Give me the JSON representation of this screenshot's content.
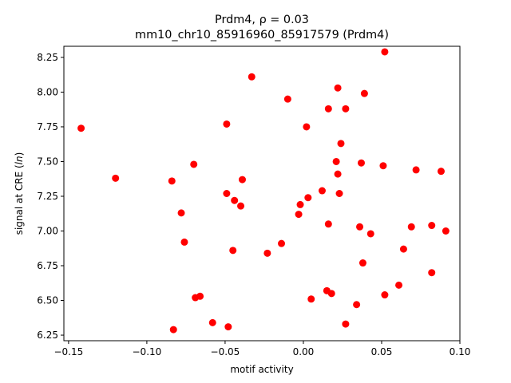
{
  "chart_data": {
    "type": "scatter",
    "title": "Prdm4, ρ = 0.03",
    "subtitle": "mm10_chr10_85916960_85917579 (Prdm4)",
    "xlabel": "motif activity",
    "ylabel": "signal at CRE (ln)",
    "ylabel_prefix": "signal at CRE (",
    "ylabel_italic": "ln",
    "ylabel_suffix": ")",
    "xlim": [
      -0.153,
      0.1
    ],
    "ylim": [
      6.21,
      8.33
    ],
    "xticks": [
      {
        "value": -0.15,
        "label": "−0.15"
      },
      {
        "value": -0.1,
        "label": "−0.10"
      },
      {
        "value": -0.05,
        "label": "−0.05"
      },
      {
        "value": 0.0,
        "label": "0.00"
      },
      {
        "value": 0.05,
        "label": "0.05"
      },
      {
        "value": 0.1,
        "label": "0.10"
      }
    ],
    "yticks": [
      {
        "value": 6.25,
        "label": "6.25"
      },
      {
        "value": 6.5,
        "label": "6.50"
      },
      {
        "value": 6.75,
        "label": "6.75"
      },
      {
        "value": 7.0,
        "label": "7.00"
      },
      {
        "value": 7.25,
        "label": "7.25"
      },
      {
        "value": 7.5,
        "label": "7.50"
      },
      {
        "value": 7.75,
        "label": "7.75"
      },
      {
        "value": 8.0,
        "label": "8.00"
      },
      {
        "value": 8.25,
        "label": "8.25"
      }
    ],
    "grid": false,
    "marker_color": "#ff0000",
    "points": [
      {
        "x": -0.142,
        "y": 7.74
      },
      {
        "x": -0.12,
        "y": 7.38
      },
      {
        "x": -0.084,
        "y": 7.36
      },
      {
        "x": -0.083,
        "y": 6.29
      },
      {
        "x": -0.078,
        "y": 7.13
      },
      {
        "x": -0.076,
        "y": 6.92
      },
      {
        "x": -0.07,
        "y": 7.48
      },
      {
        "x": -0.069,
        "y": 6.52
      },
      {
        "x": -0.066,
        "y": 6.53
      },
      {
        "x": -0.058,
        "y": 6.34
      },
      {
        "x": -0.049,
        "y": 7.77
      },
      {
        "x": -0.049,
        "y": 7.27
      },
      {
        "x": -0.048,
        "y": 6.31
      },
      {
        "x": -0.045,
        "y": 6.86
      },
      {
        "x": -0.044,
        "y": 7.22
      },
      {
        "x": -0.04,
        "y": 7.18
      },
      {
        "x": -0.039,
        "y": 7.37
      },
      {
        "x": -0.033,
        "y": 8.11
      },
      {
        "x": -0.023,
        "y": 6.84
      },
      {
        "x": -0.014,
        "y": 6.91
      },
      {
        "x": -0.01,
        "y": 7.95
      },
      {
        "x": -0.003,
        "y": 7.12
      },
      {
        "x": -0.002,
        "y": 7.19
      },
      {
        "x": 0.002,
        "y": 7.75
      },
      {
        "x": 0.003,
        "y": 7.24
      },
      {
        "x": 0.005,
        "y": 6.51
      },
      {
        "x": 0.012,
        "y": 7.29
      },
      {
        "x": 0.015,
        "y": 6.57
      },
      {
        "x": 0.016,
        "y": 7.88
      },
      {
        "x": 0.016,
        "y": 7.05
      },
      {
        "x": 0.018,
        "y": 6.55
      },
      {
        "x": 0.021,
        "y": 7.5
      },
      {
        "x": 0.022,
        "y": 8.03
      },
      {
        "x": 0.022,
        "y": 7.41
      },
      {
        "x": 0.023,
        "y": 7.27
      },
      {
        "x": 0.024,
        "y": 7.63
      },
      {
        "x": 0.027,
        "y": 7.88
      },
      {
        "x": 0.027,
        "y": 6.33
      },
      {
        "x": 0.034,
        "y": 6.47
      },
      {
        "x": 0.036,
        "y": 7.03
      },
      {
        "x": 0.037,
        "y": 7.49
      },
      {
        "x": 0.038,
        "y": 6.77
      },
      {
        "x": 0.039,
        "y": 7.99
      },
      {
        "x": 0.043,
        "y": 6.98
      },
      {
        "x": 0.051,
        "y": 7.47
      },
      {
        "x": 0.052,
        "y": 8.29
      },
      {
        "x": 0.052,
        "y": 6.54
      },
      {
        "x": 0.061,
        "y": 6.61
      },
      {
        "x": 0.064,
        "y": 6.87
      },
      {
        "x": 0.069,
        "y": 7.03
      },
      {
        "x": 0.072,
        "y": 7.44
      },
      {
        "x": 0.082,
        "y": 7.04
      },
      {
        "x": 0.082,
        "y": 6.7
      },
      {
        "x": 0.088,
        "y": 7.43
      },
      {
        "x": 0.091,
        "y": 7.0
      }
    ]
  }
}
